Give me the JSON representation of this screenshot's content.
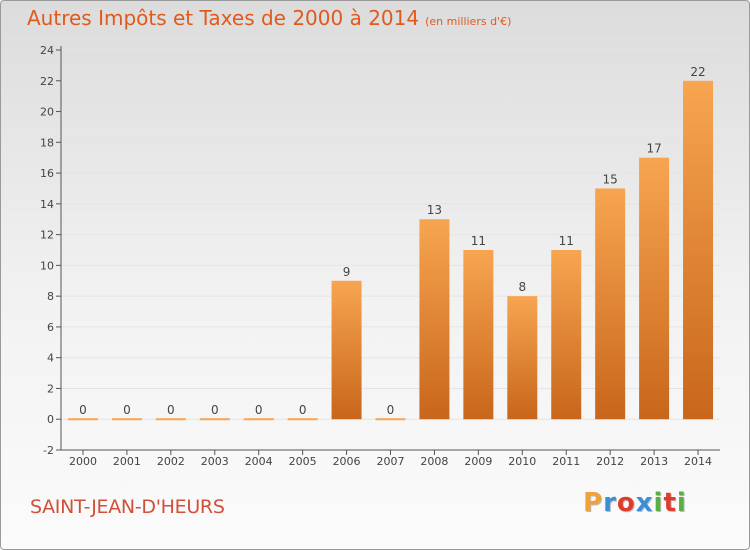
{
  "header": {
    "title": "Autres Impôts et Taxes de 2000 à 2014",
    "subtitle": "(en milliers d'€)"
  },
  "footer": {
    "commune": "SAINT-JEAN-D'HEURS",
    "logo": {
      "letters": [
        "P",
        "r",
        "o",
        "x",
        "i",
        "t",
        "i"
      ],
      "colors": [
        "#f0a23a",
        "#3b8fd6",
        "#e03c2e",
        "#3b8fd6",
        "#58b043",
        "#e03c2e",
        "#58b043"
      ]
    }
  },
  "chart_data": {
    "type": "bar",
    "categories": [
      "2000",
      "2001",
      "2002",
      "2003",
      "2004",
      "2005",
      "2006",
      "2007",
      "2008",
      "2009",
      "2010",
      "2011",
      "2012",
      "2013",
      "2014"
    ],
    "values": [
      0,
      0,
      0,
      0,
      0,
      0,
      9,
      0,
      13,
      11,
      8,
      11,
      15,
      17,
      22
    ],
    "data_labels": [
      "0",
      "0",
      "0",
      "0",
      "0",
      "0",
      "9",
      "0",
      "13",
      "11",
      "8",
      "11",
      "15",
      "17",
      "22"
    ],
    "ylim": [
      -2,
      24
    ],
    "yticks": [
      -2,
      0,
      2,
      4,
      6,
      8,
      10,
      12,
      14,
      16,
      18,
      20,
      22,
      24
    ],
    "colors": {
      "bar_light": "#f7a550",
      "bar_dark": "#c8661b",
      "axis": "#555555",
      "grid": "#e4e4e4",
      "label": "#444444"
    }
  }
}
